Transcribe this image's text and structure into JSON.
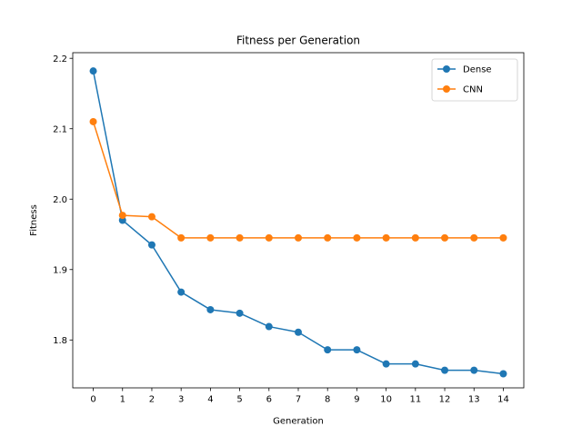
{
  "chart_data": {
    "type": "line",
    "title": "Fitness per Generation",
    "xlabel": "Generation",
    "ylabel": "Fitness",
    "x": [
      0,
      1,
      2,
      3,
      4,
      5,
      6,
      7,
      8,
      9,
      10,
      11,
      12,
      13,
      14
    ],
    "xlim": [
      -0.7,
      14.7
    ],
    "ylim": [
      1.732,
      2.208
    ],
    "xticks": [
      "0",
      "1",
      "2",
      "3",
      "4",
      "5",
      "6",
      "7",
      "8",
      "9",
      "10",
      "11",
      "12",
      "13",
      "14"
    ],
    "yticks": [
      1.8,
      1.9,
      2.0,
      2.1,
      2.2
    ],
    "ytick_labels": [
      "1.8",
      "1.9",
      "2.0",
      "2.1",
      "2.2"
    ],
    "grid": false,
    "legend_position": "top-right",
    "series": [
      {
        "name": "Dense",
        "color": "#1f77b4",
        "marker": "circle",
        "values": [
          2.182,
          1.97,
          1.935,
          1.868,
          1.843,
          1.838,
          1.819,
          1.811,
          1.786,
          1.786,
          1.766,
          1.766,
          1.757,
          1.757,
          1.752
        ]
      },
      {
        "name": "CNN",
        "color": "#ff7f0e",
        "marker": "circle",
        "values": [
          2.11,
          1.977,
          1.975,
          1.945,
          1.945,
          1.945,
          1.945,
          1.945,
          1.945,
          1.945,
          1.945,
          1.945,
          1.945,
          1.945,
          1.945
        ]
      }
    ]
  }
}
